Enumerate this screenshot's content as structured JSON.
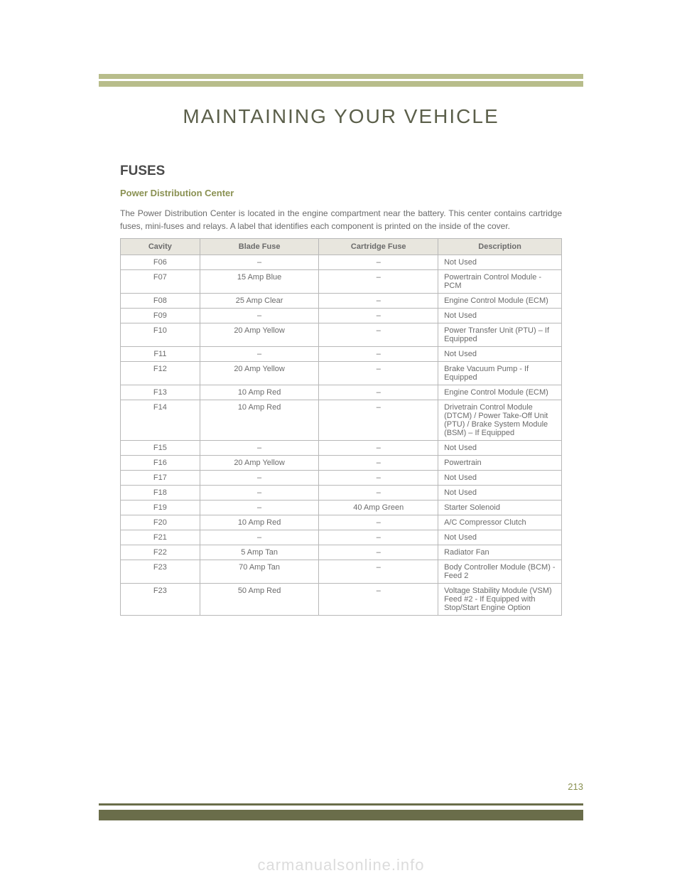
{
  "chapter_title": "MAINTAINING YOUR VEHICLE",
  "section_title": "FUSES",
  "sub_title": "Power Distribution Center",
  "body_text": "The Power Distribution Center is located in the engine compartment near the battery. This center contains cartridge fuses, mini-fuses and relays. A label that identifies each component is printed on the inside of the cover.",
  "table": {
    "columns": [
      "Cavity",
      "Blade Fuse",
      "Cartridge Fuse",
      "Description"
    ],
    "col_widths": [
      "18%",
      "27%",
      "27%",
      "28%"
    ],
    "col_align": [
      "center",
      "center",
      "center",
      "left"
    ],
    "header_bg": "#e8e6de",
    "border_color": "#b8b8b8",
    "rows": [
      [
        "F06",
        "–",
        "–",
        "Not Used"
      ],
      [
        "F07",
        "15 Amp Blue",
        "–",
        "Powertrain Control Module - PCM"
      ],
      [
        "F08",
        "25 Amp Clear",
        "–",
        "Engine Control Module (ECM)"
      ],
      [
        "F09",
        "–",
        "–",
        "Not Used"
      ],
      [
        "F10",
        "20 Amp Yellow",
        "–",
        "Power Transfer Unit (PTU) – If Equipped"
      ],
      [
        "F11",
        "–",
        "–",
        "Not Used"
      ],
      [
        "F12",
        "20 Amp Yellow",
        "–",
        "Brake Vacuum Pump - If Equipped"
      ],
      [
        "F13",
        "10 Amp Red",
        "–",
        "Engine Control Module (ECM)"
      ],
      [
        "F14",
        "10 Amp Red",
        "–",
        "Drivetrain Control Module (DTCM) / Power Take-Off Unit (PTU) / Brake System Module (BSM) – If Equipped"
      ],
      [
        "F15",
        "–",
        "–",
        "Not Used"
      ],
      [
        "F16",
        "20 Amp Yellow",
        "–",
        "Powertrain"
      ],
      [
        "F17",
        "–",
        "–",
        "Not Used"
      ],
      [
        "F18",
        "–",
        "–",
        "Not Used"
      ],
      [
        "F19",
        "–",
        "40 Amp Green",
        "Starter Solenoid"
      ],
      [
        "F20",
        "10 Amp Red",
        "–",
        "A/C Compressor Clutch"
      ],
      [
        "F21",
        "–",
        "–",
        "Not Used"
      ],
      [
        "F22",
        "5 Amp Tan",
        "–",
        "Radiator Fan"
      ],
      [
        "F23",
        "70 Amp Tan",
        "–",
        "Body Controller Module (BCM) - Feed 2"
      ],
      [
        "F23",
        "50 Amp Red",
        "–",
        "Voltage Stability Module (VSM) Feed #2 - If Equipped with Stop/Start Engine Option"
      ]
    ]
  },
  "page_number": "213",
  "watermark": "carmanualsonline.info",
  "colors": {
    "top_band": "#b8bd8b",
    "bottom_band": "#6a6d4a",
    "accent_text": "#8a9152",
    "body_text": "#6b6b6b",
    "heading_text": "#4a4a4a"
  }
}
